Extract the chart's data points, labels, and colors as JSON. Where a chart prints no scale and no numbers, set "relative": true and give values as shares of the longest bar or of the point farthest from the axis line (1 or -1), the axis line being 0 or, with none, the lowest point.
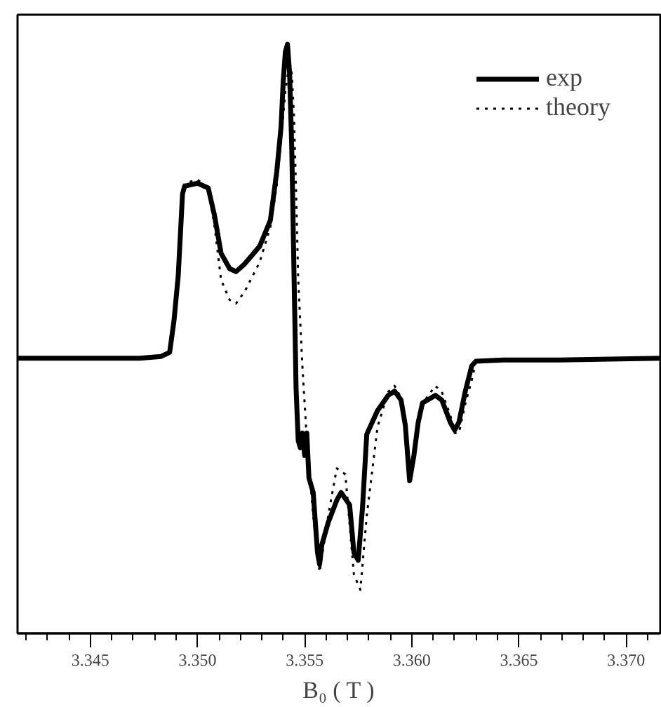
{
  "chart_data": {
    "type": "line",
    "xlabel": "B₀ ( T )",
    "relative": true,
    "xlim": [
      3.3416,
      3.3716
    ],
    "xticks": [
      3.345,
      {
        "value": 3.35,
        "label": "3.350"
      },
      3.355,
      {
        "value": 3.36,
        "label": "3.360"
      },
      3.365,
      {
        "value": 3.37,
        "label": "3.370"
      }
    ],
    "legend": "top right",
    "grid": false,
    "tick_labels": "x",
    "series": [
      {
        "name": "exp",
        "color": "#000000",
        "line_style": "solid",
        "x": [
          3.3416,
          3.3473,
          3.3483,
          3.3487,
          3.3489,
          3.3491,
          3.3493,
          3.3494,
          3.35,
          3.3505,
          3.3508,
          3.3511,
          3.3515,
          3.3518,
          3.3522,
          3.3529,
          3.3534,
          3.3537,
          3.3539,
          3.354,
          3.3541,
          3.3542,
          3.3543,
          3.3544,
          3.3545,
          3.3546,
          3.3547,
          3.3548,
          3.3549,
          3.355,
          3.3551,
          3.3552,
          3.3554,
          3.3556,
          3.3557,
          3.3558,
          3.3561,
          3.3565,
          3.3567,
          3.3571,
          3.3573,
          3.3575,
          3.3577,
          3.3579,
          3.3584,
          3.3589,
          3.3592,
          3.3595,
          3.3597,
          3.3599,
          3.3601,
          3.3603,
          3.3605,
          3.3611,
          3.3614,
          3.3618,
          3.362,
          3.3622,
          3.3625,
          3.3628,
          3.363,
          3.3643,
          3.3669,
          3.3716
        ],
        "values": [
          0.467,
          0.467,
          0.47,
          0.477,
          0.53,
          0.607,
          0.746,
          0.759,
          0.764,
          0.756,
          0.708,
          0.645,
          0.619,
          0.614,
          0.627,
          0.657,
          0.701,
          0.784,
          0.86,
          0.937,
          0.987,
          1,
          0.949,
          0.822,
          0.619,
          0.416,
          0.327,
          0.315,
          0.34,
          0.302,
          0.34,
          0.264,
          0.239,
          0.137,
          0.117,
          0.15,
          0.188,
          0.226,
          0.239,
          0.218,
          0.137,
          0.124,
          0.213,
          0.338,
          0.378,
          0.404,
          0.411,
          0.396,
          0.353,
          0.259,
          0.302,
          0.358,
          0.391,
          0.404,
          0.396,
          0.358,
          0.345,
          0.358,
          0.411,
          0.454,
          0.462,
          0.464,
          0.464,
          0.467
        ]
      },
      {
        "name": "theory",
        "color": "#000000",
        "line_style": "dotted",
        "x": [
          3.3416,
          3.3473,
          3.3483,
          3.3487,
          3.3489,
          3.3491,
          3.3493,
          3.3494,
          3.35,
          3.3505,
          3.3508,
          3.3511,
          3.3515,
          3.3518,
          3.3522,
          3.3529,
          3.3534,
          3.3537,
          3.3539,
          3.3541,
          3.3543,
          3.3544,
          3.3545,
          3.3546,
          3.3547,
          3.3549,
          3.3551,
          3.3554,
          3.3557,
          3.3561,
          3.3565,
          3.3569,
          3.3573,
          3.3576,
          3.3579,
          3.3584,
          3.3589,
          3.3592,
          3.3595,
          3.3597,
          3.3599,
          3.3601,
          3.3603,
          3.3605,
          3.3611,
          3.3614,
          3.3618,
          3.362,
          3.3622,
          3.3625,
          3.3628,
          3.363,
          3.3643,
          3.3669,
          3.3716
        ],
        "values": [
          0.467,
          0.467,
          0.47,
          0.477,
          0.53,
          0.607,
          0.746,
          0.764,
          0.77,
          0.756,
          0.69,
          0.6,
          0.566,
          0.56,
          0.58,
          0.63,
          0.69,
          0.76,
          0.84,
          0.92,
          0.97,
          0.95,
          0.88,
          0.75,
          0.6,
          0.45,
          0.33,
          0.2,
          0.104,
          0.2,
          0.28,
          0.27,
          0.1,
          0.074,
          0.2,
          0.35,
          0.41,
          0.42,
          0.4,
          0.34,
          0.256,
          0.29,
          0.35,
          0.39,
          0.42,
          0.41,
          0.37,
          0.34,
          0.34,
          0.39,
          0.43,
          0.462,
          0.464,
          0.464,
          0.467
        ]
      }
    ]
  }
}
